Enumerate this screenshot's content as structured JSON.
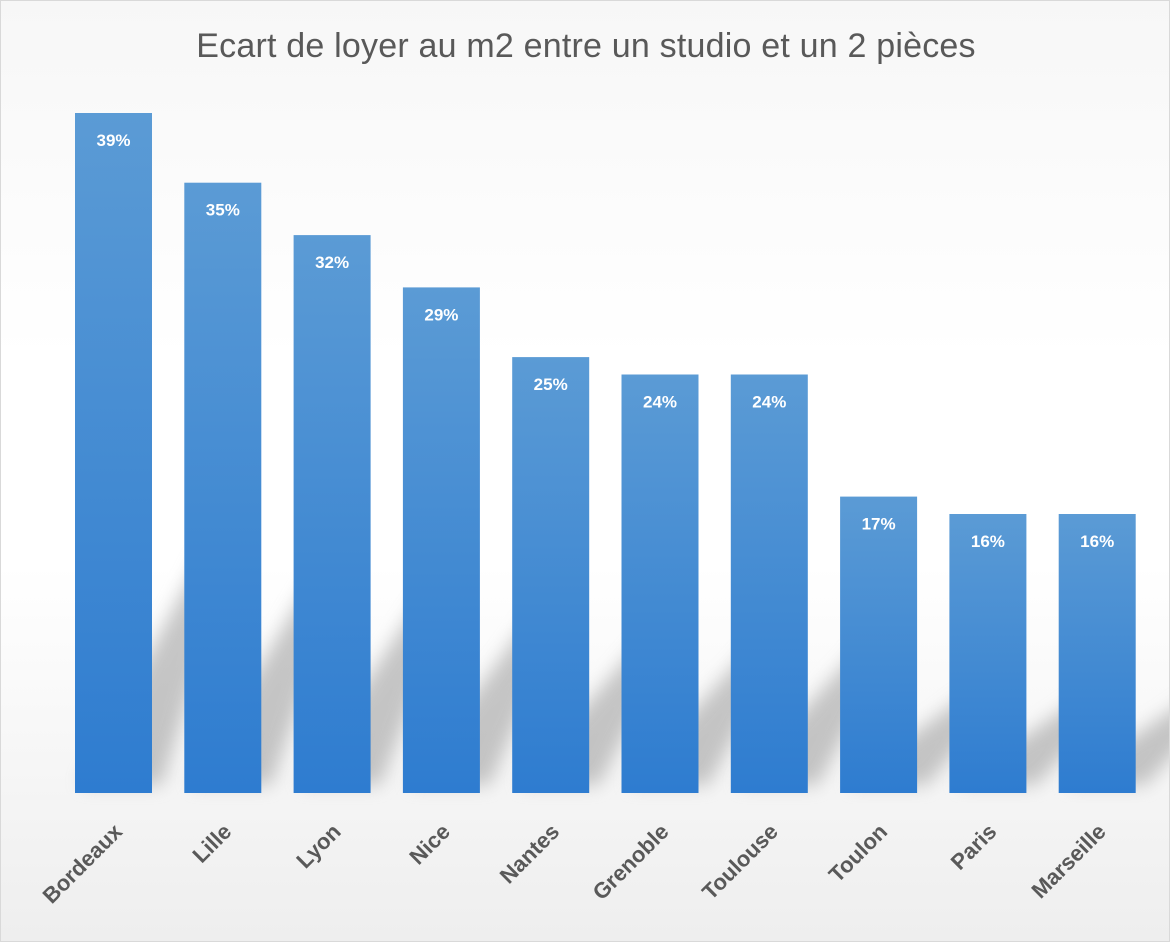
{
  "chart_data": {
    "type": "bar",
    "title": "Ecart de loyer au m2 entre un studio et un 2 pièces",
    "xlabel": "",
    "ylabel": "",
    "categories": [
      "Bordeaux",
      "Lille",
      "Lyon",
      "Nice",
      "Nantes",
      "Grenoble",
      "Toulouse",
      "Toulon",
      "Paris",
      "Marseille"
    ],
    "values": [
      39,
      35,
      32,
      29,
      25,
      24,
      24,
      17,
      16,
      16
    ],
    "labels": [
      "39%",
      "35%",
      "32%",
      "29%",
      "25%",
      "24%",
      "24%",
      "17%",
      "16%",
      "16%"
    ],
    "unit": "%",
    "ylim": [
      0,
      40
    ],
    "grid": false,
    "legend": "none",
    "colors": {
      "bar_top": "#5b9bd5",
      "bar_bottom": "#2e7cd0",
      "label": "#ffffff",
      "tick": "#595959",
      "title": "#595959"
    }
  }
}
